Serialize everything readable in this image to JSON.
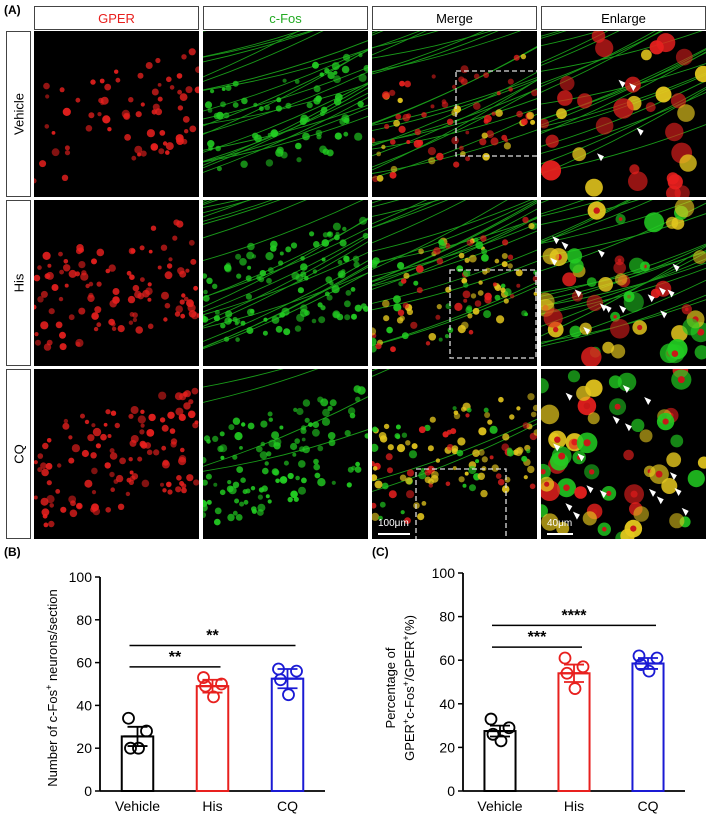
{
  "panel_a": {
    "letter": "(A)",
    "columns": [
      "GPER",
      "c-Fos",
      "Merge",
      "Enlarge"
    ],
    "rows": [
      "Vehicle",
      "His",
      "CQ"
    ],
    "scale_merge": "100μm",
    "scale_enlarge": "40μm",
    "colors": {
      "gper": "#e8201e",
      "cfos": "#22cc22",
      "merged": "#e6c81e"
    }
  },
  "panel_b": {
    "letter": "(B)",
    "ylabel_main": "Number of c-Fos",
    "ylabel_sup": "+",
    "ylabel_tail": " neurons/section",
    "sig": [
      "**",
      "**"
    ]
  },
  "panel_c": {
    "letter": "(C)",
    "ylabel_line1": "Percentage of",
    "ylabel_line2_parts": [
      "GPER",
      "+",
      "c-Fos",
      "+",
      "/GPER",
      "+",
      "(%)"
    ],
    "sig": [
      "***",
      "****"
    ]
  },
  "chart_data": [
    {
      "type": "bar",
      "categories": [
        "Vehicle",
        "His",
        "CQ"
      ],
      "values": [
        25.5,
        49,
        52.5
      ],
      "sem": [
        4.5,
        3,
        4.5
      ],
      "points": [
        [
          34,
          28,
          20,
          20
        ],
        [
          53,
          50,
          49,
          44
        ],
        [
          57,
          56,
          52,
          45
        ]
      ],
      "colors": [
        "#000000",
        "#e8201e",
        "#1a1ad4"
      ],
      "ylim": [
        0,
        100
      ],
      "yticks": [
        0,
        20,
        40,
        60,
        80,
        100
      ],
      "ylabel": "Number of c-Fos+ neurons/section",
      "brackets": [
        {
          "from": 0,
          "to": 1,
          "y": 58,
          "label": "**"
        },
        {
          "from": 0,
          "to": 2,
          "y": 68,
          "label": "**"
        }
      ]
    },
    {
      "type": "bar",
      "categories": [
        "Vehicle",
        "His",
        "CQ"
      ],
      "values": [
        27.5,
        54,
        58.5
      ],
      "sem": [
        2.5,
        4,
        2.5
      ],
      "points": [
        [
          33,
          29,
          26,
          23
        ],
        [
          61,
          57,
          54,
          47
        ],
        [
          62,
          61,
          58,
          55
        ]
      ],
      "colors": [
        "#000000",
        "#e8201e",
        "#1a1ad4"
      ],
      "ylim": [
        0,
        100
      ],
      "yticks": [
        0,
        20,
        40,
        60,
        80,
        100
      ],
      "ylabel": "Percentage of GPER+c-Fos+/GPER+(%)",
      "brackets": [
        {
          "from": 0,
          "to": 1,
          "y": 66,
          "label": "***"
        },
        {
          "from": 0,
          "to": 2,
          "y": 76,
          "label": "****"
        }
      ]
    }
  ]
}
